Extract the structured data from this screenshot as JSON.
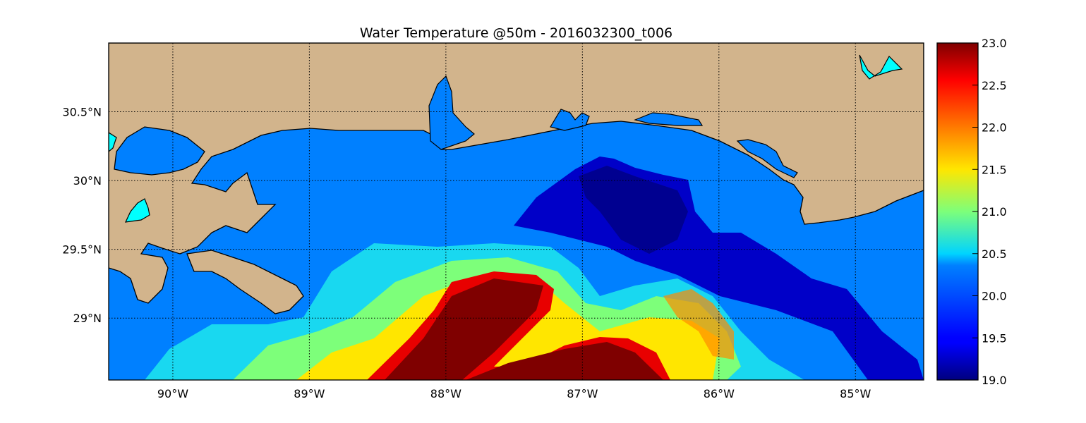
{
  "title": "Water Temperature @50m - 2016032300_t006",
  "map": {
    "projection": "equirectangular",
    "extent": {
      "lon": [
        -90.47,
        -84.5
      ],
      "lat": [
        28.55,
        31.0
      ]
    },
    "gridlines": "dotted",
    "colors": {
      "land": "#d2b48c",
      "ocean": "#0080ff",
      "lake": "#00ffff",
      "coast": "#000000"
    },
    "lat_labels": [
      {
        "lat": 30.5,
        "label": "30.5°N"
      },
      {
        "lat": 30.0,
        "label": "30°N"
      },
      {
        "lat": 29.5,
        "label": "29.5°N"
      },
      {
        "lat": 29.0,
        "label": "29°N"
      }
    ],
    "lon_labels": [
      {
        "lon": -90,
        "label": "90°W"
      },
      {
        "lon": -89,
        "label": "89°W"
      },
      {
        "lon": -88,
        "label": "88°W"
      },
      {
        "lon": -87,
        "label": "87°W"
      },
      {
        "lon": -86,
        "label": "86°W"
      },
      {
        "lon": -85,
        "label": "85°W"
      }
    ]
  },
  "colorbar": {
    "colormap": "jet",
    "min": 19.0,
    "max": 23.0,
    "ticks": [
      "23.0",
      "22.5",
      "22.0",
      "21.5",
      "21.0",
      "20.5",
      "20.0",
      "19.5",
      "19.0"
    ]
  }
}
